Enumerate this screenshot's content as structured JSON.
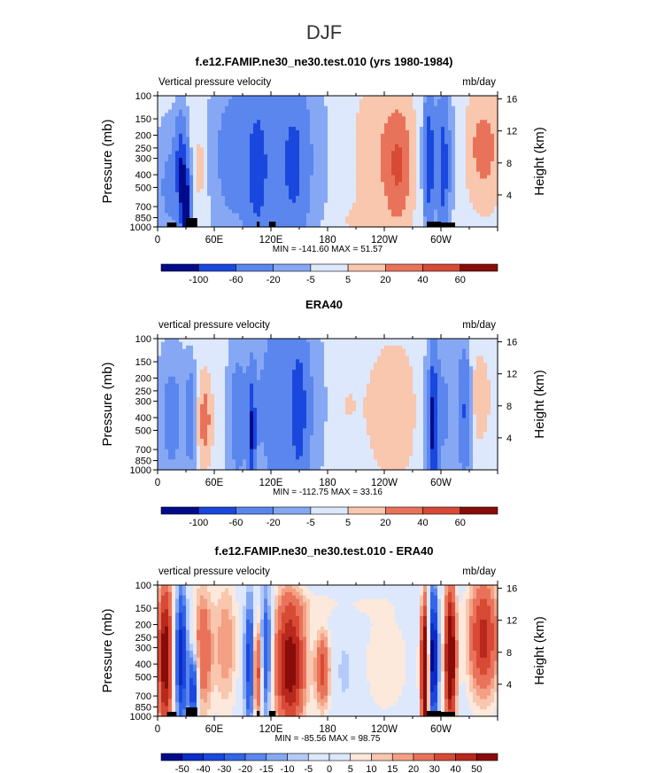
{
  "page_title": "DJF",
  "palette": [
    "#000b8c",
    "#0c2cc8",
    "#1a48de",
    "#3366e6",
    "#5a86ee",
    "#86a8f4",
    "#b4caf8",
    "#dde8fc",
    "#fde8dc",
    "#f9c6ae",
    "#f3a084",
    "#e9735a",
    "#d84a35",
    "#b8281c",
    "#8a0c0a"
  ],
  "panels": [
    {
      "title": "f.e12.FAMIP.ne30_ne30.test.010 (yrs 1980-1984)",
      "left_label": "Vertical pressure velocity",
      "right_label": "mb/day",
      "stats": "MIN = -141.60  MAX =  51.57",
      "colorbar_labels": [
        "-100",
        "-60",
        "-20",
        "-5",
        "5",
        "20",
        "40",
        "60"
      ]
    },
    {
      "title": "ERA40",
      "left_label": "vertical pressure velocity",
      "right_label": "mb/day",
      "stats": "MIN = -112.75  MAX =  33.16",
      "colorbar_labels": [
        "-100",
        "-60",
        "-20",
        "-5",
        "5",
        "20",
        "40",
        "60"
      ]
    },
    {
      "title": "f.e12.FAMIP.ne30_ne30.test.010 - ERA40",
      "left_label": "vertical pressure velocity",
      "right_label": "mb/day",
      "stats": "MIN = -85.56  MAX =  98.75",
      "colorbar_labels": [
        "-50",
        "-40",
        "-30",
        "-20",
        "-15",
        "-10",
        "-5",
        "0",
        "5",
        "10",
        "15",
        "20",
        "30",
        "40",
        "50"
      ]
    }
  ],
  "chart_data": [
    {
      "type": "heatmap",
      "title": "f.e12.FAMIP.ne30_ne30.test.010 (yrs 1980-1984)",
      "ylabel": "Pressure (mb)",
      "y2label": "Height (km)",
      "x_ticks": [
        "0",
        "60E",
        "120E",
        "180",
        "120W",
        "60W"
      ],
      "x_tick_values": [
        0,
        60,
        120,
        180,
        240,
        300
      ],
      "xlim": [
        0,
        360
      ],
      "y_ticks": [
        "100",
        "150",
        "200",
        "250",
        "300",
        "400",
        "500",
        "700",
        "850",
        "1000"
      ],
      "y_tick_values": [
        100,
        150,
        200,
        250,
        300,
        400,
        500,
        700,
        850,
        1000
      ],
      "ylim": [
        1000,
        100
      ],
      "y_scale": "log",
      "y2_ticks": [
        "4",
        "8",
        "12",
        "16"
      ],
      "contour_levels": [
        -100,
        -60,
        -20,
        -5,
        5,
        20,
        40,
        60
      ],
      "min": -141.6,
      "max": 51.57,
      "units": "mb/day"
    },
    {
      "type": "heatmap",
      "title": "ERA40",
      "ylabel": "Pressure (mb)",
      "y2label": "Height (km)",
      "x_ticks": [
        "0",
        "60E",
        "120E",
        "180",
        "120W",
        "60W"
      ],
      "x_tick_values": [
        0,
        60,
        120,
        180,
        240,
        300
      ],
      "xlim": [
        0,
        360
      ],
      "y_ticks": [
        "100",
        "150",
        "200",
        "250",
        "300",
        "400",
        "500",
        "700",
        "850",
        "1000"
      ],
      "y_tick_values": [
        100,
        150,
        200,
        250,
        300,
        400,
        500,
        700,
        850,
        1000
      ],
      "ylim": [
        1000,
        100
      ],
      "y_scale": "log",
      "y2_ticks": [
        "4",
        "8",
        "12",
        "16"
      ],
      "contour_levels": [
        -100,
        -60,
        -20,
        -5,
        5,
        20,
        40,
        60
      ],
      "min": -112.75,
      "max": 33.16,
      "units": "mb/day"
    },
    {
      "type": "heatmap",
      "title": "f.e12.FAMIP.ne30_ne30.test.010 - ERA40",
      "ylabel": "Pressure (mb)",
      "y2label": "Height (km)",
      "x_ticks": [
        "0",
        "60E",
        "120E",
        "180",
        "120W",
        "60W"
      ],
      "x_tick_values": [
        0,
        60,
        120,
        180,
        240,
        300
      ],
      "xlim": [
        0,
        360
      ],
      "y_ticks": [
        "100",
        "150",
        "200",
        "250",
        "300",
        "400",
        "500",
        "700",
        "850",
        "1000"
      ],
      "y_tick_values": [
        100,
        150,
        200,
        250,
        300,
        400,
        500,
        700,
        850,
        1000
      ],
      "ylim": [
        1000,
        100
      ],
      "y_scale": "log",
      "y2_ticks": [
        "4",
        "8",
        "12",
        "16"
      ],
      "contour_levels": [
        -50,
        -40,
        -30,
        -20,
        -15,
        -10,
        -5,
        0,
        5,
        10,
        15,
        20,
        30,
        40,
        50
      ],
      "min": -85.56,
      "max": 98.75,
      "units": "mb/day"
    }
  ]
}
